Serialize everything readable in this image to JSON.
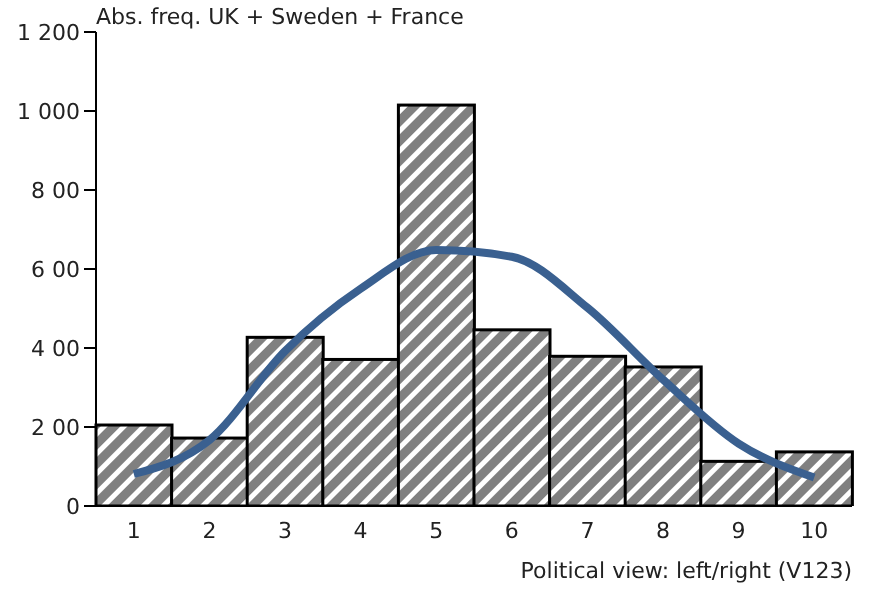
{
  "chart_data": {
    "type": "bar",
    "title": "Abs. freq. UK + Sweden + France",
    "xlabel": "Political view: left/right (V123)",
    "categories": [
      "1",
      "2",
      "3",
      "4",
      "5",
      "6",
      "7",
      "8",
      "9",
      "10"
    ],
    "series": [
      {
        "color": "#808080",
        "values": [
          205,
          172,
          427,
          371,
          1015,
          446,
          379,
          352,
          113,
          137
        ]
      },
      {
        "type": "line",
        "color": "#3a6090",
        "values": [
          81,
          167,
          392,
          550,
          648,
          631,
          502,
          320,
          158,
          72
        ]
      }
    ],
    "ylim": [
      0,
      1200
    ],
    "yticks": [
      {
        "value": 0,
        "label": "0"
      },
      {
        "value": 200,
        "label": "2 00"
      },
      {
        "value": 400,
        "label": "4 00"
      },
      {
        "value": 600,
        "label": "6 00"
      },
      {
        "value": 800,
        "label": "8 00"
      },
      {
        "value": 1000,
        "label": "1 000"
      },
      {
        "value": 1200,
        "label": "1 200"
      }
    ],
    "grid": false,
    "legend": false,
    "marker": "none",
    "line_style": "solid"
  }
}
